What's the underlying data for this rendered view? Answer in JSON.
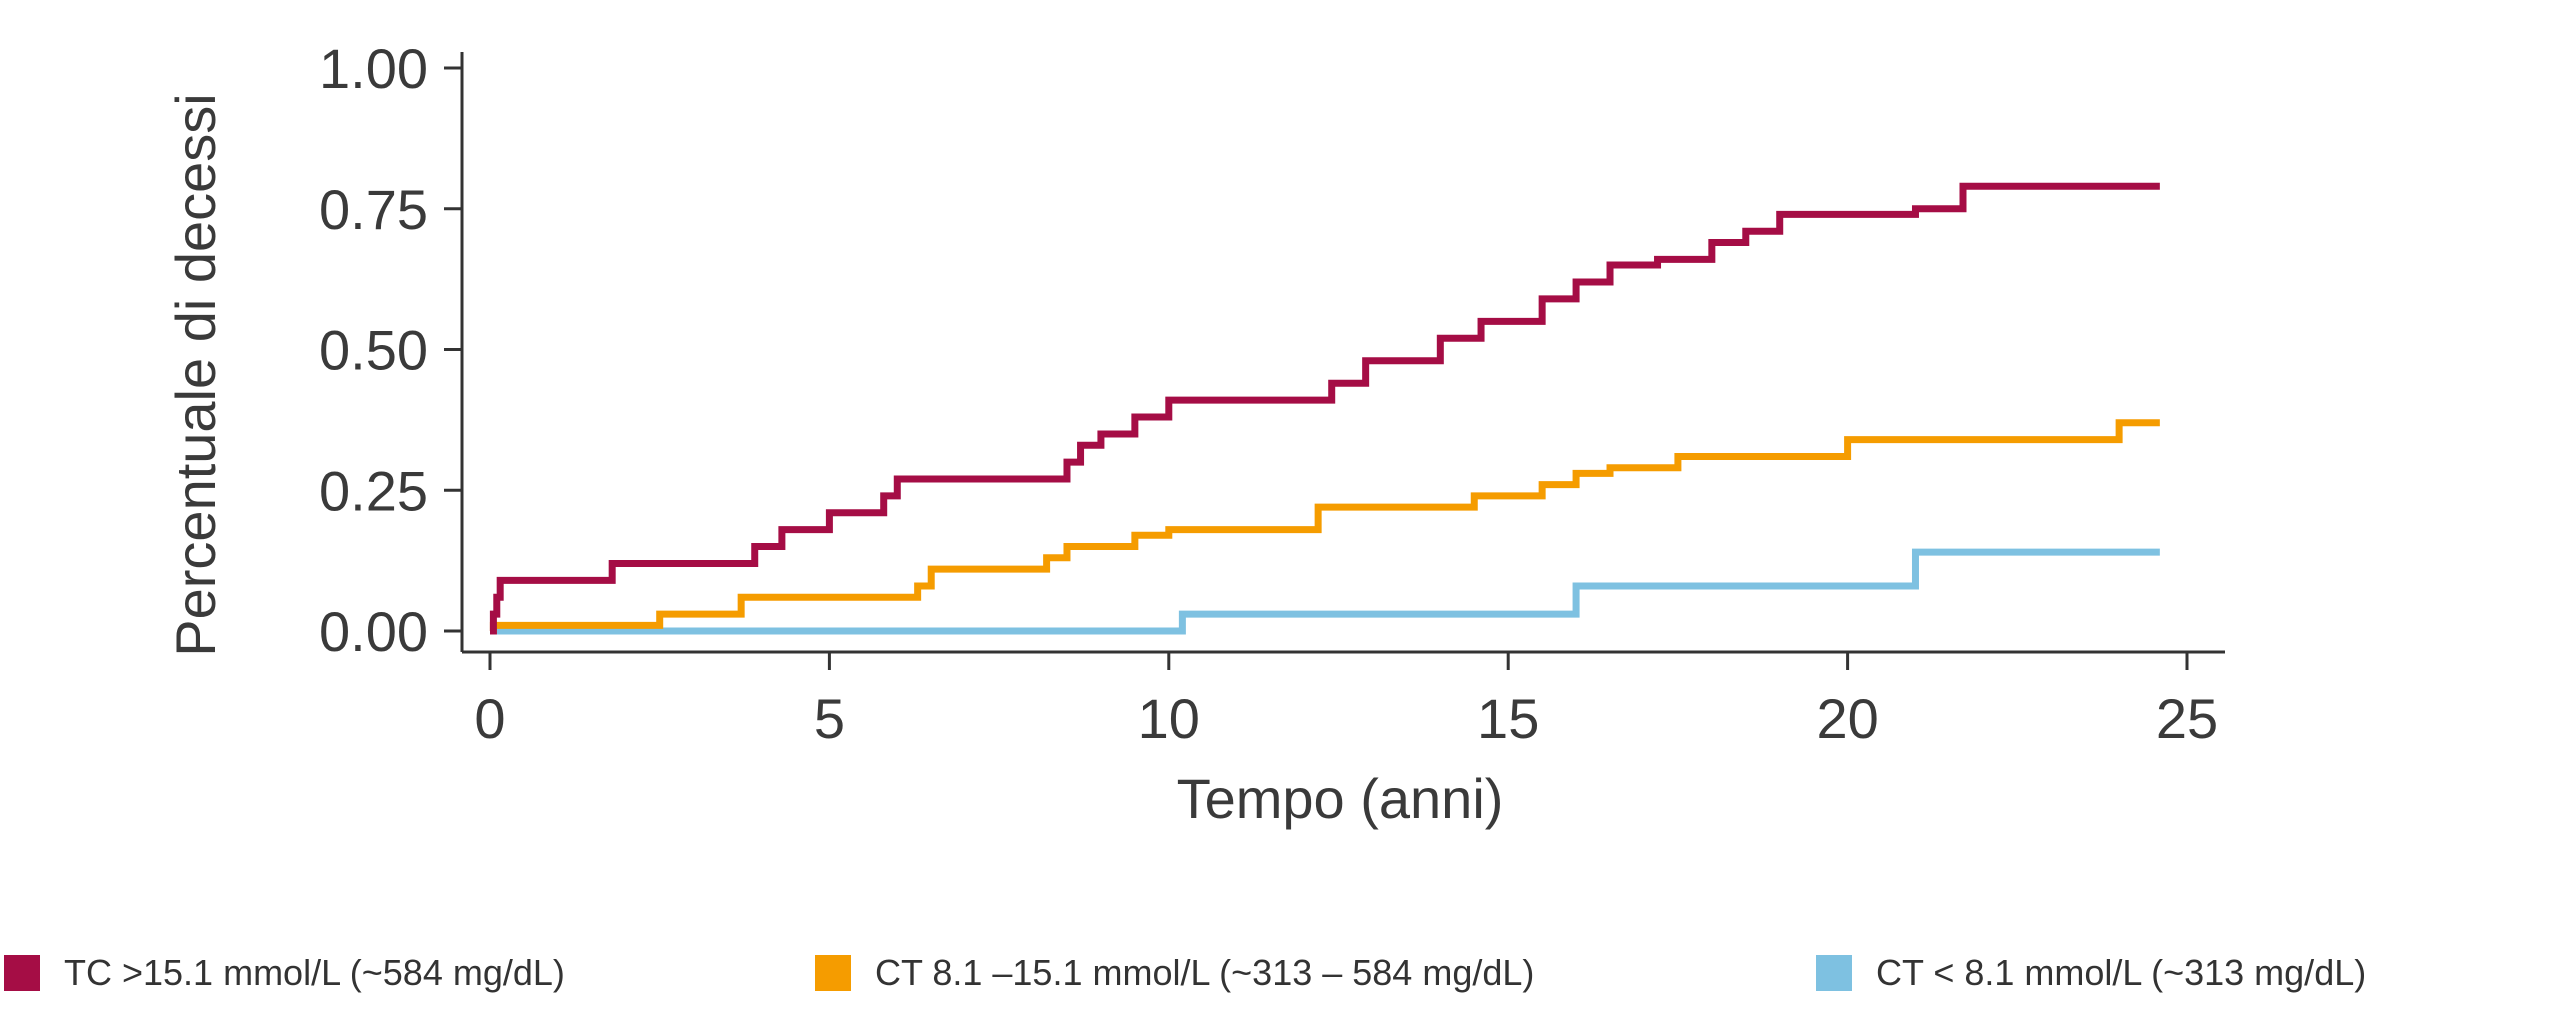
{
  "chart_data": {
    "type": "line",
    "step": true,
    "title": "",
    "xlabel": "Tempo (anni)",
    "ylabel": "Percentuale di decessi",
    "xlim": [
      0,
      25
    ],
    "ylim": [
      0,
      1
    ],
    "xticks": [
      0,
      5,
      10,
      15,
      20,
      25
    ],
    "xtick_labels": [
      "0",
      "5",
      "10",
      "15",
      "20",
      "25"
    ],
    "yticks": [
      0,
      0.25,
      0.5,
      0.75,
      1.0
    ],
    "ytick_labels": [
      "0.00",
      "0.25",
      "0.50",
      "0.75",
      "1.00"
    ],
    "grid": false,
    "legend_position": "bottom",
    "series": [
      {
        "name": "TC >15.1 mmol/L (~584 mg/dL)",
        "color": "#A50D45",
        "x": [
          0,
          0.05,
          0.1,
          0.15,
          1.8,
          3.9,
          4.3,
          5.0,
          5.8,
          6.0,
          8.5,
          8.7,
          9.0,
          9.5,
          10.0,
          12.4,
          12.9,
          14.0,
          14.6,
          15.5,
          16.0,
          16.5,
          17.2,
          18.0,
          18.5,
          19.0,
          21.0,
          21.7,
          24.6
        ],
        "y": [
          0,
          0.03,
          0.06,
          0.09,
          0.12,
          0.15,
          0.18,
          0.21,
          0.24,
          0.27,
          0.3,
          0.33,
          0.35,
          0.38,
          0.41,
          0.44,
          0.48,
          0.52,
          0.55,
          0.59,
          0.62,
          0.65,
          0.66,
          0.69,
          0.71,
          0.74,
          0.75,
          0.79,
          0.79
        ]
      },
      {
        "name": "CT 8.1 –15.1 mmol/L (~313 – 584 mg/dL)",
        "color": "#F59C00",
        "x": [
          0,
          0.05,
          2.5,
          3.7,
          6.3,
          6.5,
          8.2,
          8.5,
          9.5,
          10.0,
          12.2,
          14.5,
          15.5,
          16.0,
          16.5,
          17.5,
          20.0,
          22.0,
          24.0,
          24.6
        ],
        "y": [
          0,
          0.01,
          0.03,
          0.06,
          0.08,
          0.11,
          0.13,
          0.15,
          0.17,
          0.18,
          0.22,
          0.24,
          0.26,
          0.28,
          0.29,
          0.31,
          0.34,
          0.34,
          0.37,
          0.37
        ],
        "actual_y": [
          0,
          0.01,
          0.03,
          0.06,
          0.08,
          0.11,
          0.13,
          0.15,
          0.17,
          0.18,
          0.22,
          0.24,
          0.26,
          0.28,
          0.29,
          0.31,
          0.34,
          0.34,
          0.37,
          0.37
        ]
      },
      {
        "name": "CT < 8.1 mmol/L (~313 mg/dL)",
        "color": "#7EC1E1",
        "x": [
          0,
          10.2,
          16.0,
          21.0,
          24.6
        ],
        "y": [
          0,
          0.03,
          0.08,
          0.14,
          0.14
        ]
      }
    ]
  }
}
